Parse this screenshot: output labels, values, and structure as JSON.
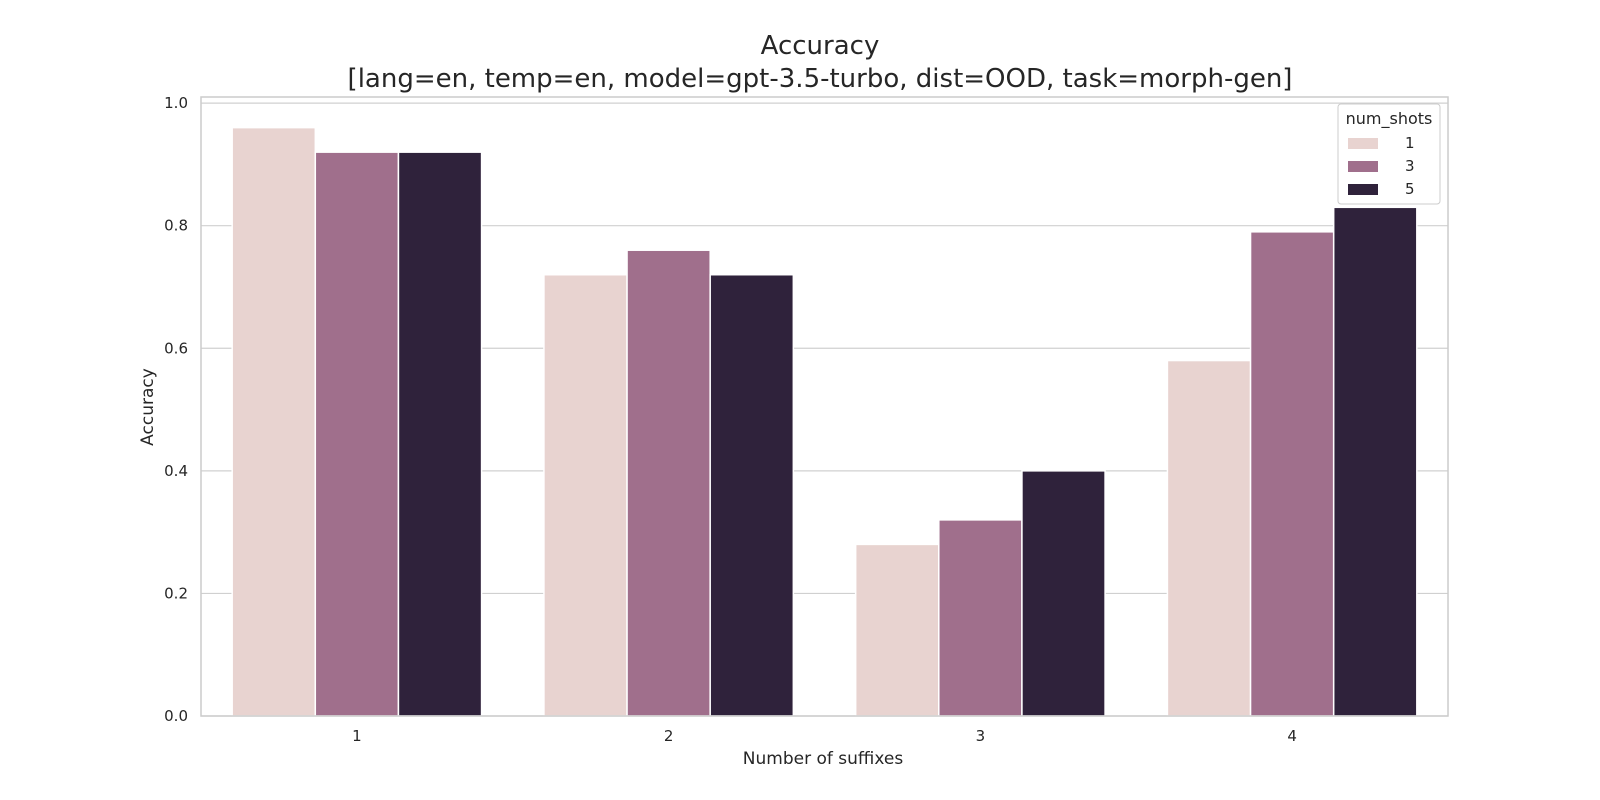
{
  "chart_data": {
    "type": "bar",
    "title": "Accuracy",
    "subtitle": "[lang=en, temp=en, model=gpt-3.5-turbo, dist=OOD, task=morph-gen]",
    "xlabel": "Number of suffixes",
    "ylabel": "Accuracy",
    "categories": [
      "1",
      "2",
      "3",
      "4"
    ],
    "ylim": [
      0.0,
      1.01
    ],
    "yticks": [
      "0.0",
      "0.2",
      "0.4",
      "0.6",
      "0.8",
      "1.0"
    ],
    "grid": "horizontal",
    "legend": {
      "title": "num_shots",
      "placement": "top-right"
    },
    "series": [
      {
        "name": "1",
        "color": "#e8d3d0",
        "values": [
          0.96,
          0.72,
          0.28,
          0.58
        ]
      },
      {
        "name": "3",
        "color": "#a06f8c",
        "values": [
          0.92,
          0.76,
          0.32,
          0.79
        ]
      },
      {
        "name": "5",
        "color": "#2f223b",
        "values": [
          0.92,
          0.72,
          0.4,
          0.83
        ]
      }
    ]
  }
}
